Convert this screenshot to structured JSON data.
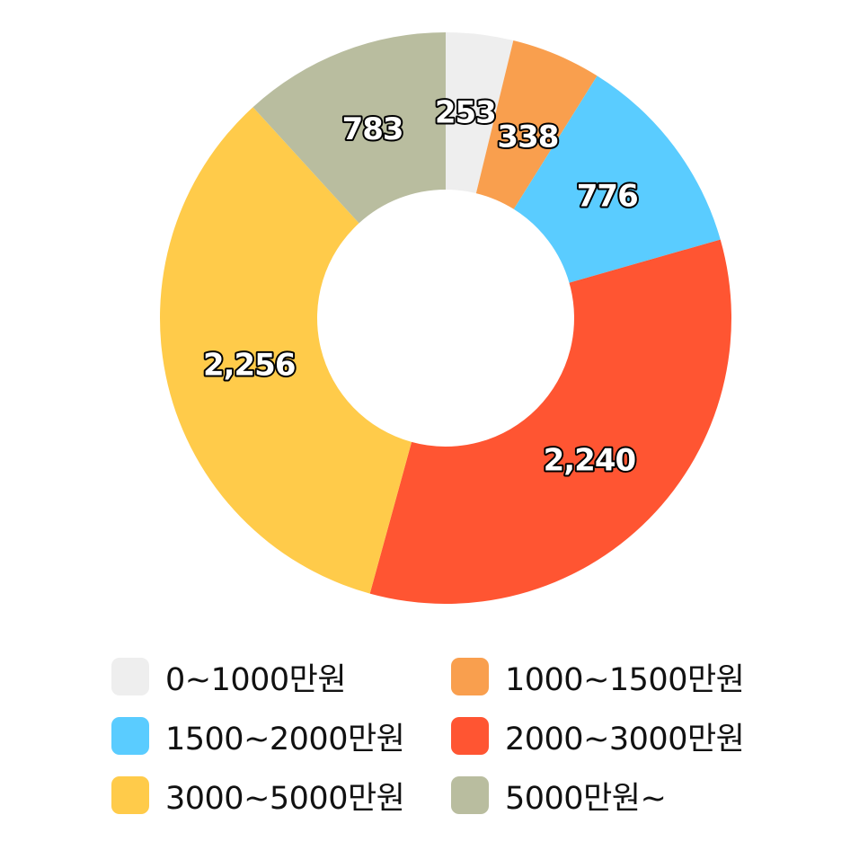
{
  "chart_data": {
    "type": "pie",
    "donut": true,
    "title": "",
    "slices": [
      {
        "label": "0~1000만원",
        "value": 253,
        "value_label": "253",
        "color": "#eeeeee"
      },
      {
        "label": "1000~1500만원",
        "value": 338,
        "value_label": "338",
        "color": "#f99f4e"
      },
      {
        "label": "1500~2000만원",
        "value": 776,
        "value_label": "776",
        "color": "#5accff"
      },
      {
        "label": "2000~3000만원",
        "value": 2240,
        "value_label": "2,240",
        "color": "#ff5532"
      },
      {
        "label": "3000~5000만원",
        "value": 2256,
        "value_label": "2,256",
        "color": "#ffcb4a"
      },
      {
        "label": "5000만원~",
        "value": 783,
        "value_label": "783",
        "color": "#b9bd9f"
      }
    ],
    "legend_position": "bottom"
  },
  "legend": {
    "items": [
      {
        "label": "0~1000만원"
      },
      {
        "label": "1000~1500만원"
      },
      {
        "label": "1500~2000만원"
      },
      {
        "label": "2000~3000만원"
      },
      {
        "label": "3000~5000만원"
      },
      {
        "label": "5000만원~"
      }
    ]
  }
}
